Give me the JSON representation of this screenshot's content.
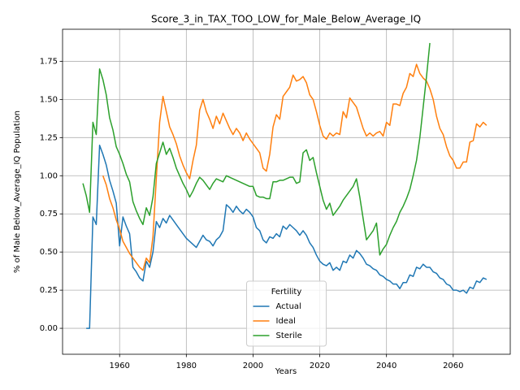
{
  "chart_data": {
    "type": "line",
    "title": "Score_3_in_TAX_TOO_LOW_for_Male_Below_Average_IQ",
    "xlabel": "Years",
    "ylabel": "% of Male Below_Average_IQ Population",
    "legend_title": "Fertility",
    "legend": "lower center",
    "grid": true,
    "xlim": [
      1942.9,
      2077.1
    ],
    "ylim": [
      -0.17,
      1.96
    ],
    "xticks": [
      1960,
      1980,
      2000,
      2020,
      2040,
      2060
    ],
    "yticks": [
      {
        "value": 0,
        "label": "0.00"
      },
      0.25,
      {
        "value": 0.5,
        "label": "0.50"
      },
      0.75,
      {
        "value": 1,
        "label": "1.00"
      },
      1.25,
      {
        "value": 1.5,
        "label": "1.50"
      },
      1.75
    ],
    "x": [
      1949,
      1950,
      1951,
      1952,
      1953,
      1954,
      1955,
      1956,
      1957,
      1958,
      1959,
      1960,
      1961,
      1962,
      1963,
      1964,
      1965,
      1966,
      1967,
      1968,
      1969,
      1970,
      1971,
      1972,
      1973,
      1974,
      1975,
      1976,
      1977,
      1978,
      1979,
      1980,
      1981,
      1982,
      1983,
      1984,
      1985,
      1986,
      1987,
      1988,
      1989,
      1990,
      1991,
      1992,
      1993,
      1994,
      1995,
      1996,
      1997,
      1998,
      1999,
      2000,
      2001,
      2002,
      2003,
      2004,
      2005,
      2006,
      2007,
      2008,
      2009,
      2010,
      2011,
      2012,
      2013,
      2014,
      2015,
      2016,
      2017,
      2018,
      2019,
      2020,
      2021,
      2022,
      2023,
      2024,
      2025,
      2026,
      2027,
      2028,
      2029,
      2030,
      2031,
      2032,
      2033,
      2034,
      2035,
      2036,
      2037,
      2038,
      2039,
      2040,
      2041,
      2042,
      2043,
      2044,
      2045,
      2046,
      2047,
      2048,
      2049,
      2050,
      2051,
      2052,
      2053,
      2054,
      2055,
      2056,
      2057,
      2058,
      2059,
      2060,
      2061,
      2062,
      2063,
      2064,
      2065,
      2066,
      2067,
      2068,
      2069,
      2070
    ],
    "series": [
      {
        "name": "Actual",
        "color": "#1f77b4",
        "values": [
          null,
          0,
          0,
          0.73,
          0.68,
          1.2,
          1.14,
          1.07,
          0.97,
          0.9,
          0.82,
          0.54,
          0.73,
          0.67,
          0.62,
          0.4,
          0.37,
          0.33,
          0.31,
          0.44,
          0.4,
          0.5,
          0.7,
          0.66,
          0.72,
          0.69,
          0.74,
          0.71,
          0.68,
          0.65,
          0.62,
          0.59,
          0.57,
          0.55,
          0.53,
          0.57,
          0.61,
          0.58,
          0.57,
          0.54,
          0.58,
          0.6,
          0.64,
          0.81,
          0.79,
          0.76,
          0.8,
          0.77,
          0.75,
          0.78,
          0.76,
          0.73,
          0.66,
          0.64,
          0.58,
          0.56,
          0.6,
          0.59,
          0.62,
          0.6,
          0.67,
          0.65,
          0.68,
          0.66,
          0.64,
          0.61,
          0.64,
          0.61,
          0.56,
          0.53,
          0.48,
          0.44,
          0.42,
          0.41,
          0.43,
          0.38,
          0.4,
          0.38,
          0.44,
          0.43,
          0.48,
          0.46,
          0.51,
          0.49,
          0.46,
          0.42,
          0.41,
          0.39,
          0.38,
          0.35,
          0.34,
          0.32,
          0.31,
          0.29,
          0.29,
          0.26,
          0.3,
          0.3,
          0.35,
          0.34,
          0.4,
          0.39,
          0.42,
          0.4,
          0.4,
          0.37,
          0.36,
          0.33,
          0.32,
          0.29,
          0.28,
          0.25,
          0.25,
          0.24,
          0.25,
          0.23,
          0.27,
          0.26,
          0.31,
          0.3,
          0.33,
          0.32
        ]
      },
      {
        "name": "Ideal",
        "color": "#ff7f0e",
        "values": [
          null,
          null,
          null,
          null,
          null,
          null,
          1.0,
          0.94,
          0.85,
          0.79,
          0.71,
          0.65,
          0.57,
          0.53,
          0.49,
          0.46,
          0.43,
          0.4,
          0.38,
          0.46,
          0.43,
          0.6,
          0.98,
          1.35,
          1.52,
          1.42,
          1.32,
          1.27,
          1.21,
          1.13,
          1.07,
          1.02,
          0.98,
          1.1,
          1.2,
          1.43,
          1.5,
          1.42,
          1.37,
          1.31,
          1.39,
          1.34,
          1.41,
          1.36,
          1.31,
          1.27,
          1.31,
          1.28,
          1.23,
          1.28,
          1.24,
          1.21,
          1.18,
          1.15,
          1.05,
          1.03,
          1.14,
          1.32,
          1.4,
          1.37,
          1.52,
          1.55,
          1.58,
          1.66,
          1.62,
          1.63,
          1.65,
          1.61,
          1.53,
          1.5,
          1.42,
          1.33,
          1.26,
          1.24,
          1.28,
          1.26,
          1.28,
          1.27,
          1.42,
          1.38,
          1.51,
          1.48,
          1.45,
          1.38,
          1.31,
          1.26,
          1.28,
          1.26,
          1.28,
          1.29,
          1.26,
          1.35,
          1.33,
          1.47,
          1.47,
          1.46,
          1.54,
          1.58,
          1.67,
          1.65,
          1.73,
          1.67,
          1.64,
          1.62,
          1.57,
          1.5,
          1.39,
          1.31,
          1.27,
          1.19,
          1.13,
          1.1,
          1.05,
          1.05,
          1.09,
          1.09,
          1.22,
          1.23,
          1.34,
          1.32,
          1.35,
          1.33
        ]
      },
      {
        "name": "Sterile",
        "color": "#2ca02c",
        "values": [
          0.95,
          0.87,
          0.76,
          1.35,
          1.27,
          1.7,
          1.63,
          1.53,
          1.38,
          1.3,
          1.19,
          1.14,
          1.08,
          1.01,
          0.96,
          0.83,
          0.77,
          0.72,
          0.68,
          0.79,
          0.74,
          0.86,
          1.08,
          1.15,
          1.22,
          1.14,
          1.18,
          1.12,
          1.05,
          1.0,
          0.95,
          0.91,
          0.86,
          0.9,
          0.95,
          0.99,
          0.97,
          0.94,
          0.91,
          0.95,
          0.98,
          0.97,
          0.96,
          1.0,
          0.99,
          0.98,
          0.97,
          0.96,
          0.95,
          0.94,
          0.93,
          0.93,
          0.87,
          0.86,
          0.86,
          0.85,
          0.85,
          0.96,
          0.96,
          0.97,
          0.97,
          0.98,
          0.99,
          0.99,
          0.95,
          0.96,
          1.15,
          1.17,
          1.1,
          1.12,
          1.02,
          0.93,
          0.84,
          0.78,
          0.82,
          0.74,
          0.77,
          0.8,
          0.84,
          0.87,
          0.9,
          0.93,
          0.98,
          0.86,
          0.72,
          0.58,
          0.61,
          0.64,
          0.69,
          0.48,
          0.52,
          0.55,
          0.61,
          0.66,
          0.7,
          0.76,
          0.8,
          0.85,
          0.91,
          1.0,
          1.1,
          1.25,
          1.45,
          1.65,
          1.87,
          null,
          null,
          null,
          null,
          null,
          null,
          null,
          null,
          null,
          null,
          null,
          null,
          null,
          null,
          null,
          null,
          null
        ]
      }
    ]
  }
}
